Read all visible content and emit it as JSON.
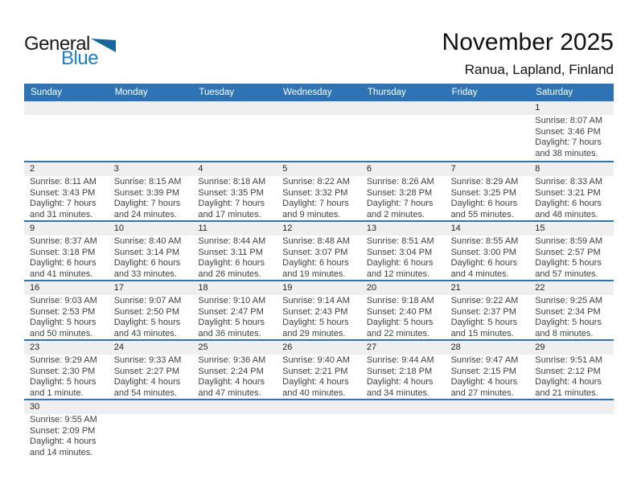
{
  "logo": {
    "general": "General",
    "blue": "Blue"
  },
  "header": {
    "title": "November 2025",
    "subtitle": "Ranua, Lapland, Finland"
  },
  "weekdays": [
    "Sunday",
    "Monday",
    "Tuesday",
    "Wednesday",
    "Thursday",
    "Friday",
    "Saturday"
  ],
  "colors": {
    "header_bg": "#2E74B5",
    "band_bg": "#EFEFEF",
    "logo_triangle": "#15689F",
    "logo_blue": "#1E7FC2",
    "text_color": "#3F3F3F",
    "title_color": "#111111"
  },
  "calendar": {
    "weeks": [
      [
        {
          "day": "",
          "lines": []
        },
        {
          "day": "",
          "lines": []
        },
        {
          "day": "",
          "lines": []
        },
        {
          "day": "",
          "lines": []
        },
        {
          "day": "",
          "lines": []
        },
        {
          "day": "",
          "lines": []
        },
        {
          "day": "1",
          "lines": [
            "Sunrise: 8:07 AM",
            "Sunset: 3:46 PM",
            "Daylight: 7 hours",
            "and 38 minutes."
          ]
        }
      ],
      [
        {
          "day": "2",
          "lines": [
            "Sunrise: 8:11 AM",
            "Sunset: 3:43 PM",
            "Daylight: 7 hours",
            "and 31 minutes."
          ]
        },
        {
          "day": "3",
          "lines": [
            "Sunrise: 8:15 AM",
            "Sunset: 3:39 PM",
            "Daylight: 7 hours",
            "and 24 minutes."
          ]
        },
        {
          "day": "4",
          "lines": [
            "Sunrise: 8:18 AM",
            "Sunset: 3:35 PM",
            "Daylight: 7 hours",
            "and 17 minutes."
          ]
        },
        {
          "day": "5",
          "lines": [
            "Sunrise: 8:22 AM",
            "Sunset: 3:32 PM",
            "Daylight: 7 hours",
            "and 9 minutes."
          ]
        },
        {
          "day": "6",
          "lines": [
            "Sunrise: 8:26 AM",
            "Sunset: 3:28 PM",
            "Daylight: 7 hours",
            "and 2 minutes."
          ]
        },
        {
          "day": "7",
          "lines": [
            "Sunrise: 8:29 AM",
            "Sunset: 3:25 PM",
            "Daylight: 6 hours",
            "and 55 minutes."
          ]
        },
        {
          "day": "8",
          "lines": [
            "Sunrise: 8:33 AM",
            "Sunset: 3:21 PM",
            "Daylight: 6 hours",
            "and 48 minutes."
          ]
        }
      ],
      [
        {
          "day": "9",
          "lines": [
            "Sunrise: 8:37 AM",
            "Sunset: 3:18 PM",
            "Daylight: 6 hours",
            "and 41 minutes."
          ]
        },
        {
          "day": "10",
          "lines": [
            "Sunrise: 8:40 AM",
            "Sunset: 3:14 PM",
            "Daylight: 6 hours",
            "and 33 minutes."
          ]
        },
        {
          "day": "11",
          "lines": [
            "Sunrise: 8:44 AM",
            "Sunset: 3:11 PM",
            "Daylight: 6 hours",
            "and 26 minutes."
          ]
        },
        {
          "day": "12",
          "lines": [
            "Sunrise: 8:48 AM",
            "Sunset: 3:07 PM",
            "Daylight: 6 hours",
            "and 19 minutes."
          ]
        },
        {
          "day": "13",
          "lines": [
            "Sunrise: 8:51 AM",
            "Sunset: 3:04 PM",
            "Daylight: 6 hours",
            "and 12 minutes."
          ]
        },
        {
          "day": "14",
          "lines": [
            "Sunrise: 8:55 AM",
            "Sunset: 3:00 PM",
            "Daylight: 6 hours",
            "and 4 minutes."
          ]
        },
        {
          "day": "15",
          "lines": [
            "Sunrise: 8:59 AM",
            "Sunset: 2:57 PM",
            "Daylight: 5 hours",
            "and 57 minutes."
          ]
        }
      ],
      [
        {
          "day": "16",
          "lines": [
            "Sunrise: 9:03 AM",
            "Sunset: 2:53 PM",
            "Daylight: 5 hours",
            "and 50 minutes."
          ]
        },
        {
          "day": "17",
          "lines": [
            "Sunrise: 9:07 AM",
            "Sunset: 2:50 PM",
            "Daylight: 5 hours",
            "and 43 minutes."
          ]
        },
        {
          "day": "18",
          "lines": [
            "Sunrise: 9:10 AM",
            "Sunset: 2:47 PM",
            "Daylight: 5 hours",
            "and 36 minutes."
          ]
        },
        {
          "day": "19",
          "lines": [
            "Sunrise: 9:14 AM",
            "Sunset: 2:43 PM",
            "Daylight: 5 hours",
            "and 29 minutes."
          ]
        },
        {
          "day": "20",
          "lines": [
            "Sunrise: 9:18 AM",
            "Sunset: 2:40 PM",
            "Daylight: 5 hours",
            "and 22 minutes."
          ]
        },
        {
          "day": "21",
          "lines": [
            "Sunrise: 9:22 AM",
            "Sunset: 2:37 PM",
            "Daylight: 5 hours",
            "and 15 minutes."
          ]
        },
        {
          "day": "22",
          "lines": [
            "Sunrise: 9:25 AM",
            "Sunset: 2:34 PM",
            "Daylight: 5 hours",
            "and 8 minutes."
          ]
        }
      ],
      [
        {
          "day": "23",
          "lines": [
            "Sunrise: 9:29 AM",
            "Sunset: 2:30 PM",
            "Daylight: 5 hours",
            "and 1 minute."
          ]
        },
        {
          "day": "24",
          "lines": [
            "Sunrise: 9:33 AM",
            "Sunset: 2:27 PM",
            "Daylight: 4 hours",
            "and 54 minutes."
          ]
        },
        {
          "day": "25",
          "lines": [
            "Sunrise: 9:36 AM",
            "Sunset: 2:24 PM",
            "Daylight: 4 hours",
            "and 47 minutes."
          ]
        },
        {
          "day": "26",
          "lines": [
            "Sunrise: 9:40 AM",
            "Sunset: 2:21 PM",
            "Daylight: 4 hours",
            "and 40 minutes."
          ]
        },
        {
          "day": "27",
          "lines": [
            "Sunrise: 9:44 AM",
            "Sunset: 2:18 PM",
            "Daylight: 4 hours",
            "and 34 minutes."
          ]
        },
        {
          "day": "28",
          "lines": [
            "Sunrise: 9:47 AM",
            "Sunset: 2:15 PM",
            "Daylight: 4 hours",
            "and 27 minutes."
          ]
        },
        {
          "day": "29",
          "lines": [
            "Sunrise: 9:51 AM",
            "Sunset: 2:12 PM",
            "Daylight: 4 hours",
            "and 21 minutes."
          ]
        }
      ],
      [
        {
          "day": "30",
          "lines": [
            "Sunrise: 9:55 AM",
            "Sunset: 2:09 PM",
            "Daylight: 4 hours",
            "and 14 minutes."
          ]
        },
        {
          "day": "",
          "lines": []
        },
        {
          "day": "",
          "lines": []
        },
        {
          "day": "",
          "lines": []
        },
        {
          "day": "",
          "lines": []
        },
        {
          "day": "",
          "lines": []
        },
        {
          "day": "",
          "lines": []
        }
      ]
    ]
  }
}
